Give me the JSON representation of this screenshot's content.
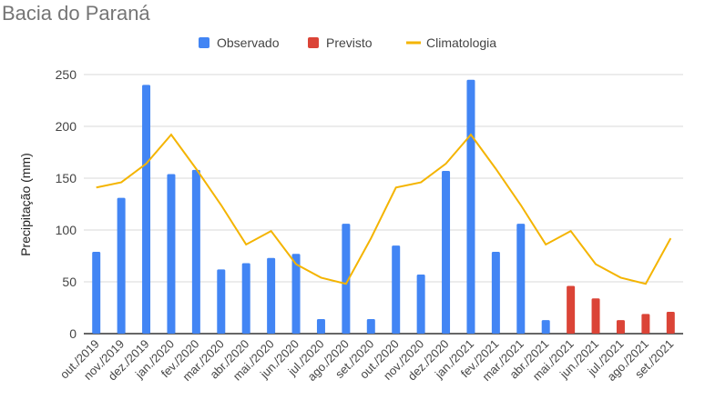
{
  "chart_data": {
    "type": "bar",
    "title": "Bacia do Paraná",
    "xlabel": "",
    "ylabel": "Precipitação (mm)",
    "ylim": [
      0,
      250
    ],
    "yticks": [
      0,
      50,
      100,
      150,
      200,
      250
    ],
    "grid": true,
    "legend_placement": "top",
    "categories": [
      "out./2019",
      "nov./2019",
      "dez./2019",
      "jan./2020",
      "fev./2020",
      "mar./2020",
      "abr./2020",
      "mai./2020",
      "jun./2020",
      "jul./2020",
      "ago./2020",
      "set./2020",
      "out./2020",
      "nov./2020",
      "dez./2020",
      "jan./2021",
      "fev./2021",
      "mar./2021",
      "abr./2021",
      "mai./2021",
      "jun./2021",
      "jul./2021",
      "ago./2021",
      "set./2021"
    ],
    "series": [
      {
        "name": "Observado",
        "kind": "bar",
        "color": "#4285f4",
        "values": [
          79,
          131,
          240,
          154,
          158,
          62,
          68,
          73,
          77,
          14,
          106,
          14,
          85,
          57,
          157,
          245,
          79,
          106,
          13,
          null,
          null,
          null,
          null,
          null
        ]
      },
      {
        "name": "Previsto",
        "kind": "bar",
        "color": "#db4437",
        "values": [
          null,
          null,
          null,
          null,
          null,
          null,
          null,
          null,
          null,
          null,
          null,
          null,
          null,
          null,
          null,
          null,
          null,
          null,
          null,
          46,
          34,
          13,
          19,
          21
        ]
      },
      {
        "name": "Climatologia",
        "kind": "line",
        "color": "#f4b400",
        "values": [
          141,
          146,
          164,
          192,
          159,
          124,
          86,
          99,
          67,
          54,
          48,
          92,
          141,
          146,
          164,
          192,
          159,
          124,
          86,
          99,
          67,
          54,
          48,
          92
        ]
      }
    ]
  }
}
